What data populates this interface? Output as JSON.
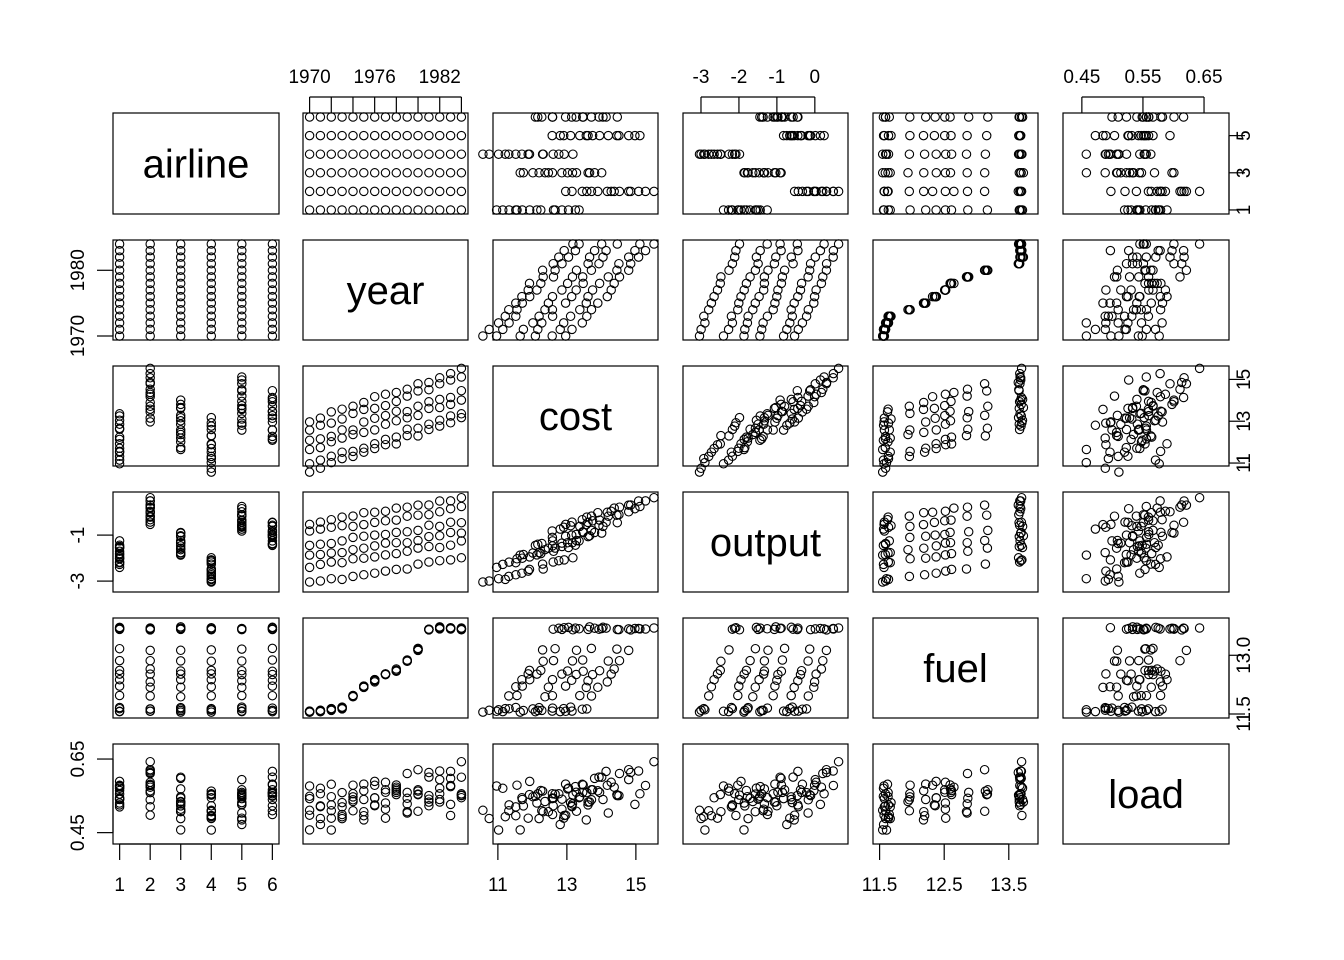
{
  "chart_data": {
    "type": "scatter-matrix",
    "variables": [
      "airline",
      "year",
      "cost",
      "output",
      "fuel",
      "load"
    ],
    "ranges": {
      "airline": [
        1,
        6
      ],
      "year": [
        1970,
        1984
      ],
      "cost": [
        11.05,
        15.45
      ],
      "output": [
        -3.3,
        0.7
      ],
      "fuel": [
        11.5,
        13.85
      ],
      "load": [
        0.43,
        0.68
      ]
    },
    "axis_ticks": {
      "airline": [
        "1",
        "2",
        "3",
        "4",
        "5",
        "6"
      ],
      "year": [
        "1970",
        "1976",
        "1982"
      ],
      "cost": [
        "11",
        "13",
        "15"
      ],
      "output": [
        "-3",
        "-2",
        "-1",
        "0"
      ],
      "output_left": [
        "-3",
        "-1"
      ],
      "fuel": [
        "11.5",
        "12.5",
        "13.5"
      ],
      "fuel_right": [
        "11.5",
        "13.0"
      ],
      "airline_right": [
        "1",
        "3",
        "5"
      ],
      "year_left": [
        "1970",
        "1980"
      ],
      "cost_right": [
        "11",
        "13",
        "15"
      ],
      "load": [
        "0.45",
        "0.55",
        "0.65"
      ],
      "load_left": [
        "0.45",
        "0.65"
      ]
    },
    "params": {
      "cost_base": [
        12.15,
        14.25,
        12.85,
        11.85,
        13.85,
        13.2
      ],
      "cost_slope": 0.175,
      "output_base": [
        -1.85,
        0.05,
        -1.4,
        -2.55,
        -0.35,
        -0.95
      ],
      "output_slope": 0.075,
      "fuel_by_year": [
        11.56,
        11.58,
        11.62,
        11.66,
        11.95,
        12.2,
        12.35,
        12.5,
        12.62,
        12.85,
        13.15,
        13.65,
        13.7,
        13.7,
        13.68
      ],
      "load_base": [
        0.56,
        0.57,
        0.53,
        0.51,
        0.53,
        0.56
      ],
      "load_slope": 0.004
    }
  }
}
